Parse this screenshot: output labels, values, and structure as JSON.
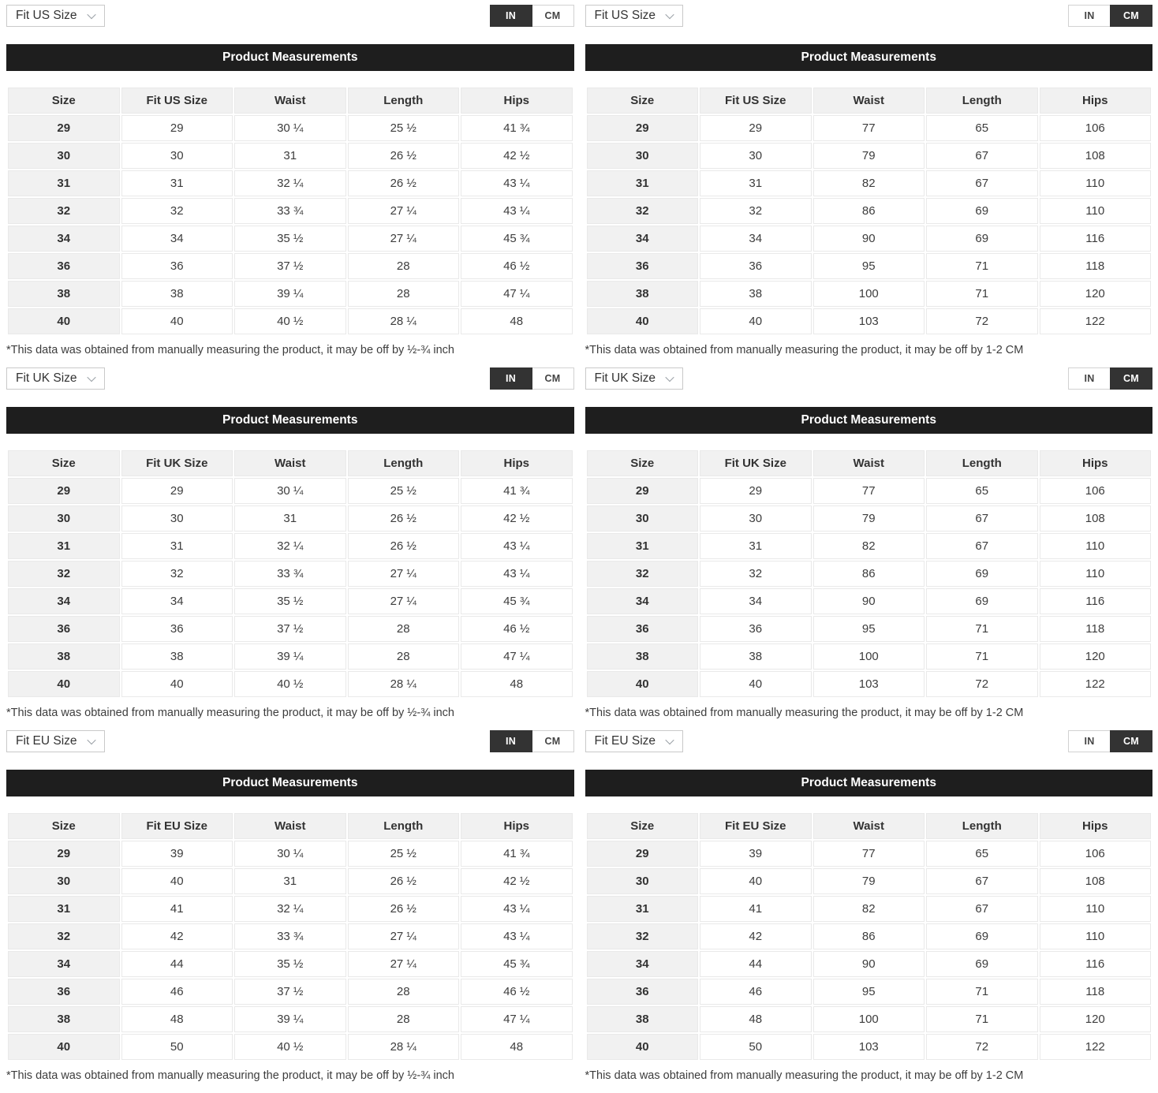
{
  "panels": [
    {
      "dropdown_label": "Fit US Size",
      "unit_labels": [
        "IN",
        "CM"
      ],
      "unit_selected": "IN",
      "header_title": "Product Measurements",
      "columns": [
        "Size",
        "Fit US Size",
        "Waist",
        "Length",
        "Hips"
      ],
      "rows": [
        [
          "29",
          "29",
          "30 ¼",
          "25 ½",
          "41 ¾"
        ],
        [
          "30",
          "30",
          "31",
          "26 ½",
          "42 ½"
        ],
        [
          "31",
          "31",
          "32 ¼",
          "26 ½",
          "43 ¼"
        ],
        [
          "32",
          "32",
          "33 ¾",
          "27 ¼",
          "43 ¼"
        ],
        [
          "34",
          "34",
          "35 ½",
          "27 ¼",
          "45 ¾"
        ],
        [
          "36",
          "36",
          "37 ½",
          "28",
          "46 ½"
        ],
        [
          "38",
          "38",
          "39 ¼",
          "28",
          "47 ¼"
        ],
        [
          "40",
          "40",
          "40 ½",
          "28 ¼",
          "48"
        ]
      ],
      "footnote": "*This data was obtained from manually measuring the product, it may be off by ½-¾ inch"
    },
    {
      "dropdown_label": "Fit US Size",
      "unit_labels": [
        "IN",
        "CM"
      ],
      "unit_selected": "CM",
      "header_title": "Product Measurements",
      "columns": [
        "Size",
        "Fit US Size",
        "Waist",
        "Length",
        "Hips"
      ],
      "rows": [
        [
          "29",
          "29",
          "77",
          "65",
          "106"
        ],
        [
          "30",
          "30",
          "79",
          "67",
          "108"
        ],
        [
          "31",
          "31",
          "82",
          "67",
          "110"
        ],
        [
          "32",
          "32",
          "86",
          "69",
          "110"
        ],
        [
          "34",
          "34",
          "90",
          "69",
          "116"
        ],
        [
          "36",
          "36",
          "95",
          "71",
          "118"
        ],
        [
          "38",
          "38",
          "100",
          "71",
          "120"
        ],
        [
          "40",
          "40",
          "103",
          "72",
          "122"
        ]
      ],
      "footnote": "*This data was obtained from manually measuring the product, it may be off by 1-2 CM"
    },
    {
      "dropdown_label": "Fit UK Size",
      "unit_labels": [
        "IN",
        "CM"
      ],
      "unit_selected": "IN",
      "header_title": "Product Measurements",
      "columns": [
        "Size",
        "Fit UK Size",
        "Waist",
        "Length",
        "Hips"
      ],
      "rows": [
        [
          "29",
          "29",
          "30 ¼",
          "25 ½",
          "41 ¾"
        ],
        [
          "30",
          "30",
          "31",
          "26 ½",
          "42 ½"
        ],
        [
          "31",
          "31",
          "32 ¼",
          "26 ½",
          "43 ¼"
        ],
        [
          "32",
          "32",
          "33 ¾",
          "27 ¼",
          "43 ¼"
        ],
        [
          "34",
          "34",
          "35 ½",
          "27 ¼",
          "45 ¾"
        ],
        [
          "36",
          "36",
          "37 ½",
          "28",
          "46 ½"
        ],
        [
          "38",
          "38",
          "39 ¼",
          "28",
          "47 ¼"
        ],
        [
          "40",
          "40",
          "40 ½",
          "28 ¼",
          "48"
        ]
      ],
      "footnote": "*This data was obtained from manually measuring the product, it may be off by ½-¾ inch"
    },
    {
      "dropdown_label": "Fit UK Size",
      "unit_labels": [
        "IN",
        "CM"
      ],
      "unit_selected": "CM",
      "header_title": "Product Measurements",
      "columns": [
        "Size",
        "Fit UK Size",
        "Waist",
        "Length",
        "Hips"
      ],
      "rows": [
        [
          "29",
          "29",
          "77",
          "65",
          "106"
        ],
        [
          "30",
          "30",
          "79",
          "67",
          "108"
        ],
        [
          "31",
          "31",
          "82",
          "67",
          "110"
        ],
        [
          "32",
          "32",
          "86",
          "69",
          "110"
        ],
        [
          "34",
          "34",
          "90",
          "69",
          "116"
        ],
        [
          "36",
          "36",
          "95",
          "71",
          "118"
        ],
        [
          "38",
          "38",
          "100",
          "71",
          "120"
        ],
        [
          "40",
          "40",
          "103",
          "72",
          "122"
        ]
      ],
      "footnote": "*This data was obtained from manually measuring the product, it may be off by 1-2 CM"
    },
    {
      "dropdown_label": "Fit EU Size",
      "unit_labels": [
        "IN",
        "CM"
      ],
      "unit_selected": "IN",
      "header_title": "Product Measurements",
      "columns": [
        "Size",
        "Fit EU Size",
        "Waist",
        "Length",
        "Hips"
      ],
      "rows": [
        [
          "29",
          "39",
          "30 ¼",
          "25 ½",
          "41 ¾"
        ],
        [
          "30",
          "40",
          "31",
          "26 ½",
          "42 ½"
        ],
        [
          "31",
          "41",
          "32 ¼",
          "26 ½",
          "43 ¼"
        ],
        [
          "32",
          "42",
          "33 ¾",
          "27 ¼",
          "43 ¼"
        ],
        [
          "34",
          "44",
          "35 ½",
          "27 ¼",
          "45 ¾"
        ],
        [
          "36",
          "46",
          "37 ½",
          "28",
          "46 ½"
        ],
        [
          "38",
          "48",
          "39 ¼",
          "28",
          "47 ¼"
        ],
        [
          "40",
          "50",
          "40 ½",
          "28 ¼",
          "48"
        ]
      ],
      "footnote": "*This data was obtained from manually measuring the product, it may be off by ½-¾ inch"
    },
    {
      "dropdown_label": "Fit EU Size",
      "unit_labels": [
        "IN",
        "CM"
      ],
      "unit_selected": "CM",
      "header_title": "Product Measurements",
      "columns": [
        "Size",
        "Fit EU Size",
        "Waist",
        "Length",
        "Hips"
      ],
      "rows": [
        [
          "29",
          "39",
          "77",
          "65",
          "106"
        ],
        [
          "30",
          "40",
          "79",
          "67",
          "108"
        ],
        [
          "31",
          "41",
          "82",
          "67",
          "110"
        ],
        [
          "32",
          "42",
          "86",
          "69",
          "110"
        ],
        [
          "34",
          "44",
          "90",
          "69",
          "116"
        ],
        [
          "36",
          "46",
          "95",
          "71",
          "118"
        ],
        [
          "38",
          "48",
          "100",
          "71",
          "120"
        ],
        [
          "40",
          "50",
          "103",
          "72",
          "122"
        ]
      ],
      "footnote": "*This data was obtained from manually measuring the product, it may be off by 1-2 CM"
    }
  ],
  "colors": {
    "title_bar_bg": "#1e1e1e",
    "toggle_active_bg": "#333333",
    "table_header_bg": "#f1f1f1",
    "cell_border": "#e9e9e9",
    "text": "#3d3d3d"
  }
}
